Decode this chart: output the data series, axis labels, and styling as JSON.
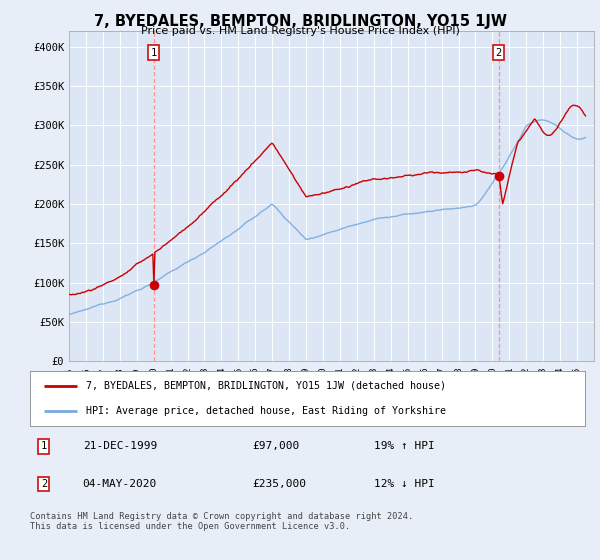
{
  "title": "7, BYEDALES, BEMPTON, BRIDLINGTON, YO15 1JW",
  "subtitle": "Price paid vs. HM Land Registry's House Price Index (HPI)",
  "bg_color": "#e8eef7",
  "plot_bg_color": "#dce6f5",
  "grid_color": "#ffffff",
  "ylim": [
    0,
    420000
  ],
  "yticks": [
    0,
    50000,
    100000,
    150000,
    200000,
    250000,
    300000,
    350000,
    400000
  ],
  "ytick_labels": [
    "£0",
    "£50K",
    "£100K",
    "£150K",
    "£200K",
    "£250K",
    "£300K",
    "£350K",
    "£400K"
  ],
  "sale1_year": 2000.0,
  "sale1_price": 97000,
  "sale1_label": "1",
  "sale2_year": 2020.37,
  "sale2_price": 235000,
  "sale2_label": "2",
  "legend_line1": "7, BYEDALES, BEMPTON, BRIDLINGTON, YO15 1JW (detached house)",
  "legend_line2": "HPI: Average price, detached house, East Riding of Yorkshire",
  "note1_label": "1",
  "note1_date": "21-DEC-1999",
  "note1_price": "£97,000",
  "note1_hpi": "19% ↑ HPI",
  "note2_label": "2",
  "note2_date": "04-MAY-2020",
  "note2_price": "£235,000",
  "note2_hpi": "12% ↓ HPI",
  "footer": "Contains HM Land Registry data © Crown copyright and database right 2024.\nThis data is licensed under the Open Government Licence v3.0.",
  "line_red": "#cc0000",
  "line_blue": "#7aaadd",
  "dashed_red": "#ff6666"
}
